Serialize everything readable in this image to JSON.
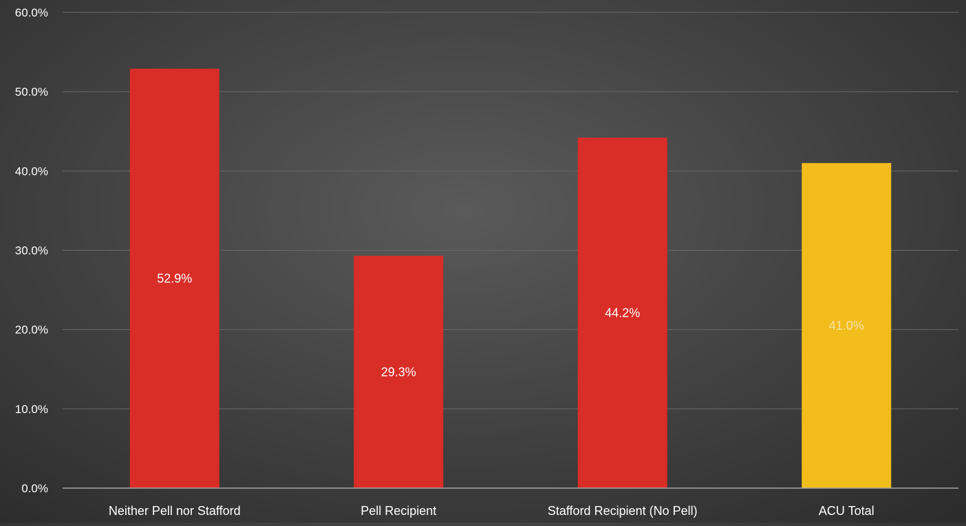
{
  "chart_data": {
    "type": "bar",
    "title": "",
    "xlabel": "",
    "ylabel": "",
    "categories": [
      "Neither Pell nor Stafford",
      "Pell Recipient",
      "Stafford Recipient (No Pell)",
      "ACU Total"
    ],
    "values": [
      52.9,
      29.3,
      44.2,
      41.0
    ],
    "data_labels": [
      "52.9%",
      "29.3%",
      "44.2%",
      "41.0%"
    ],
    "bar_colors": [
      "#d92d27",
      "#d92d27",
      "#d92d27",
      "#f2bc1b"
    ],
    "data_label_colors": [
      "#ffffff",
      "#ffffff",
      "#ffffff",
      "#f7e3a8"
    ],
    "ylim": [
      0,
      60
    ],
    "yticks": [
      0,
      10,
      20,
      30,
      40,
      50,
      60
    ],
    "ytick_labels": [
      "0.0%",
      "10.0%",
      "20.0%",
      "30.0%",
      "40.0%",
      "50.0%",
      "60.0%"
    ],
    "grid": true,
    "legend": "none"
  },
  "colors": {
    "gridline": "#6a6a6a",
    "axis_line": "#a6a6a6",
    "tick_text": "#ffffff"
  }
}
